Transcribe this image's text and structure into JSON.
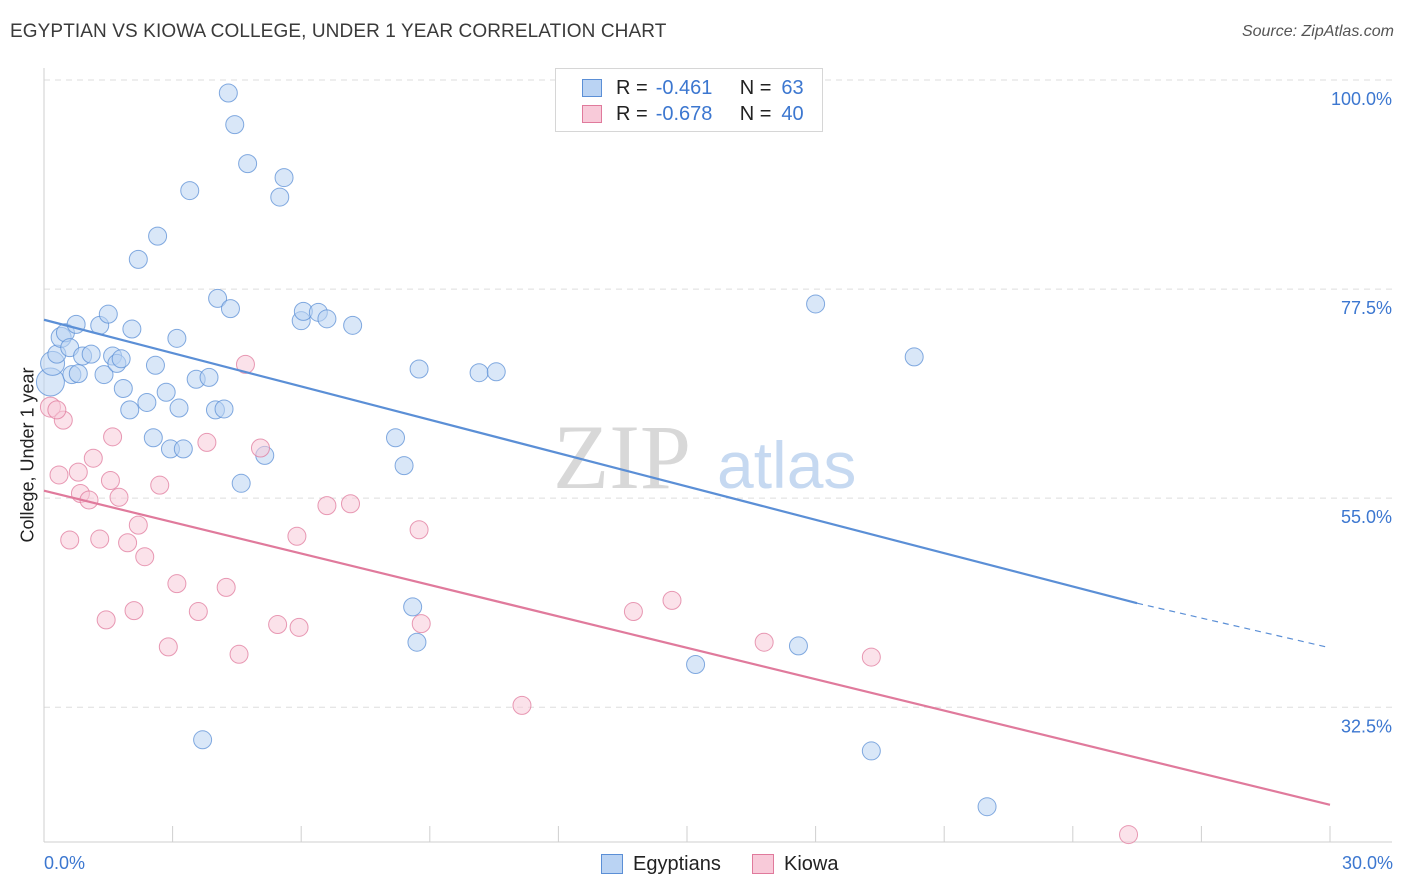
{
  "header": {
    "title": "EGYPTIAN VS KIOWA COLLEGE, UNDER 1 YEAR CORRELATION CHART",
    "source": "Source: ZipAtlas.com"
  },
  "watermark": {
    "zip": "ZIP",
    "atlas": "atlas"
  },
  "legend": {
    "rows": [
      {
        "r_label": "R =",
        "r_value": "-0.461",
        "n_label": "N =",
        "n_value": "63",
        "color": "#5b8fd6",
        "fill": "#bad3f3"
      },
      {
        "r_label": "R =",
        "r_value": "-0.678",
        "n_label": "N =",
        "n_value": "40",
        "color": "#e07a9c",
        "fill": "#f8cad9"
      }
    ]
  },
  "bottom_legend": [
    {
      "label": "Egyptians",
      "color": "#5b8fd6",
      "fill": "#bad3f3"
    },
    {
      "label": "Kiowa",
      "color": "#e07a9c",
      "fill": "#f8cad9"
    }
  ],
  "chart_data": {
    "type": "scatter",
    "title": "EGYPTIAN VS KIOWA COLLEGE, UNDER 1 YEAR CORRELATION CHART",
    "xlabel": "",
    "ylabel": "College, Under 1 year",
    "xlim": [
      0,
      30
    ],
    "ylim": [
      18,
      100
    ],
    "x_tick_labels": [
      "0.0%",
      "30.0%"
    ],
    "y_ticks": [
      32.5,
      55.0,
      77.5,
      100.0
    ],
    "y_tick_labels": [
      "32.5%",
      "55.0%",
      "77.5%",
      "100.0%"
    ],
    "grid": true,
    "legend_position": "top-center",
    "series": [
      {
        "name": "Egyptians",
        "color": "#5b8fd6",
        "fill": "#bad3f3",
        "r": -0.461,
        "n": 63,
        "trend": {
          "x0": 0.0,
          "y0": 74.2,
          "x1": 25.5,
          "y1": 43.7,
          "dash_to_x": 30.0,
          "dash_to_y": 38.9
        },
        "points": [
          [
            0.15,
            67.5,
            14
          ],
          [
            0.2,
            69.5,
            12
          ],
          [
            0.3,
            70.5,
            9
          ],
          [
            0.4,
            72.3,
            10
          ],
          [
            0.5,
            72.8,
            9
          ],
          [
            0.6,
            71.2,
            9
          ],
          [
            0.65,
            68.3,
            9
          ],
          [
            0.75,
            73.7,
            9
          ],
          [
            0.8,
            68.4,
            9
          ],
          [
            0.9,
            70.3,
            9
          ],
          [
            1.1,
            70.5,
            9
          ],
          [
            1.3,
            73.6,
            9
          ],
          [
            1.4,
            68.3,
            9
          ],
          [
            1.5,
            74.8,
            9
          ],
          [
            1.6,
            70.3,
            9
          ],
          [
            1.7,
            69.5,
            9
          ],
          [
            1.8,
            70.0,
            9
          ],
          [
            1.85,
            66.8,
            9
          ],
          [
            2.0,
            64.5,
            9
          ],
          [
            2.05,
            73.2,
            9
          ],
          [
            2.2,
            80.7,
            9
          ],
          [
            2.4,
            65.3,
            9
          ],
          [
            2.55,
            61.5,
            9
          ],
          [
            2.6,
            69.3,
            9
          ],
          [
            2.65,
            83.2,
            9
          ],
          [
            2.85,
            66.4,
            9
          ],
          [
            2.95,
            60.3,
            9
          ],
          [
            3.1,
            72.2,
            9
          ],
          [
            3.15,
            64.7,
            9
          ],
          [
            3.25,
            60.3,
            9
          ],
          [
            3.4,
            88.1,
            9
          ],
          [
            3.55,
            67.8,
            9
          ],
          [
            3.7,
            29.0,
            9
          ],
          [
            3.85,
            68.0,
            9
          ],
          [
            4.0,
            64.5,
            9
          ],
          [
            4.05,
            76.5,
            9
          ],
          [
            4.2,
            64.6,
            9
          ],
          [
            4.3,
            98.6,
            9
          ],
          [
            4.35,
            75.4,
            9
          ],
          [
            4.45,
            95.2,
            9
          ],
          [
            4.6,
            56.6,
            9
          ],
          [
            4.75,
            91.0,
            9
          ],
          [
            5.15,
            59.6,
            9
          ],
          [
            5.5,
            87.4,
            9
          ],
          [
            5.6,
            89.5,
            9
          ],
          [
            6.0,
            74.1,
            9
          ],
          [
            6.05,
            75.1,
            9
          ],
          [
            6.4,
            75.0,
            9
          ],
          [
            6.6,
            74.3,
            9
          ],
          [
            7.2,
            73.6,
            9
          ],
          [
            8.2,
            61.5,
            9
          ],
          [
            8.4,
            58.5,
            9
          ],
          [
            8.6,
            43.3,
            9
          ],
          [
            8.7,
            39.5,
            9
          ],
          [
            8.75,
            68.9,
            9
          ],
          [
            10.15,
            68.5,
            9
          ],
          [
            10.55,
            68.6,
            9
          ],
          [
            15.2,
            37.1,
            9
          ],
          [
            17.6,
            39.1,
            9
          ],
          [
            18.0,
            75.9,
            9
          ],
          [
            19.3,
            27.8,
            9
          ],
          [
            20.3,
            70.2,
            9
          ],
          [
            22.0,
            21.8,
            9
          ]
        ]
      },
      {
        "name": "Kiowa",
        "color": "#e07a9c",
        "fill": "#f8cad9",
        "r": -0.678,
        "n": 40,
        "trend": {
          "x0": 0.0,
          "y0": 55.8,
          "x1": 30.0,
          "y1": 22.0
        },
        "points": [
          [
            0.15,
            64.8,
            10
          ],
          [
            0.35,
            57.5,
            9
          ],
          [
            0.45,
            63.4,
            9
          ],
          [
            0.6,
            50.5,
            9
          ],
          [
            0.8,
            57.8,
            9
          ],
          [
            0.85,
            55.5,
            9
          ],
          [
            1.05,
            54.8,
            9
          ],
          [
            1.15,
            59.3,
            9
          ],
          [
            1.3,
            50.6,
            9
          ],
          [
            1.45,
            41.9,
            9
          ],
          [
            1.55,
            56.9,
            9
          ],
          [
            1.6,
            61.6,
            9
          ],
          [
            1.75,
            55.1,
            9
          ],
          [
            1.95,
            50.2,
            9
          ],
          [
            2.1,
            42.9,
            9
          ],
          [
            2.2,
            52.1,
            9
          ],
          [
            2.35,
            48.7,
            9
          ],
          [
            2.7,
            56.4,
            9
          ],
          [
            2.9,
            39.0,
            9
          ],
          [
            3.1,
            45.8,
            9
          ],
          [
            3.6,
            42.8,
            9
          ],
          [
            3.8,
            61.0,
            9
          ],
          [
            4.25,
            45.4,
            9
          ],
          [
            4.55,
            38.2,
            9
          ],
          [
            4.7,
            69.4,
            9
          ],
          [
            5.05,
            60.4,
            9
          ],
          [
            5.45,
            41.4,
            9
          ],
          [
            5.9,
            50.9,
            9
          ],
          [
            5.95,
            41.1,
            9
          ],
          [
            6.6,
            54.2,
            9
          ],
          [
            7.15,
            54.4,
            9
          ],
          [
            8.75,
            51.6,
            9
          ],
          [
            8.8,
            41.5,
            9
          ],
          [
            11.15,
            32.7,
            9
          ],
          [
            13.75,
            42.8,
            9
          ],
          [
            14.65,
            44.0,
            9
          ],
          [
            16.8,
            39.5,
            9
          ],
          [
            19.3,
            37.9,
            9
          ],
          [
            25.3,
            18.8,
            9
          ],
          [
            0.3,
            64.5,
            9
          ]
        ]
      }
    ]
  },
  "axis": {
    "x_left_label": "0.0%",
    "x_right_label": "30.0%"
  }
}
